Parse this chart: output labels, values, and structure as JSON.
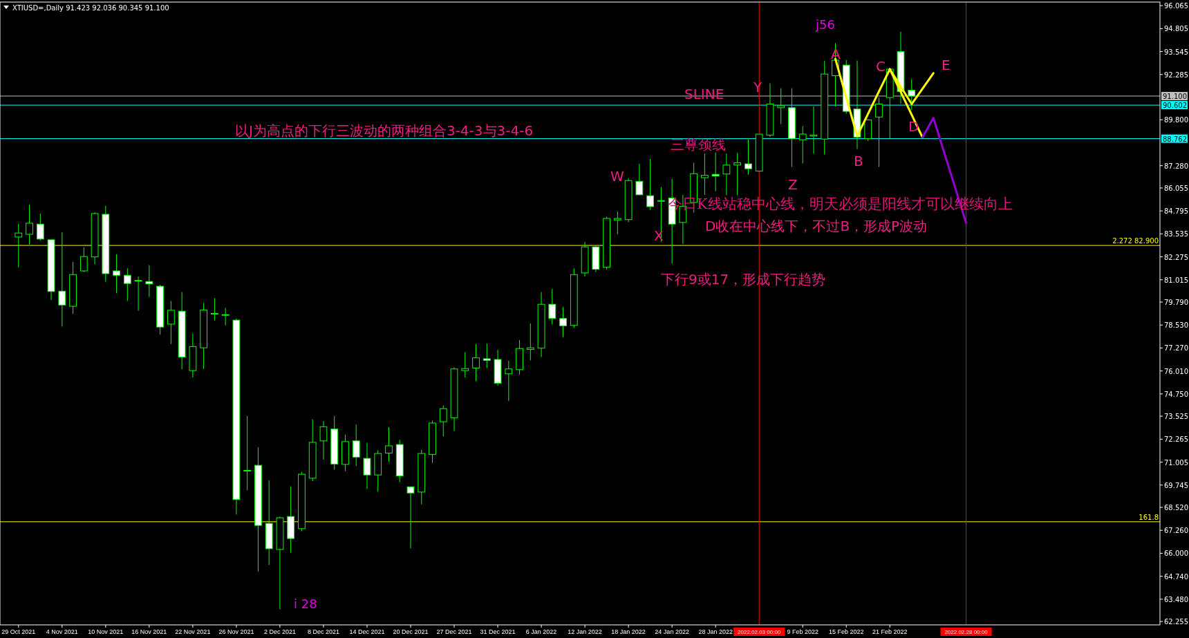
{
  "chart_data": {
    "type": "candlestick",
    "title": "XTIUSD=,Daily  91.423 92.036 90.345 91.100",
    "categories": [
      "29 Oct 2021",
      null,
      null,
      null,
      "4 Nov 2021",
      null,
      null,
      null,
      "10 Nov 2021",
      null,
      null,
      null,
      "16 Nov 2021",
      null,
      null,
      null,
      "22 Nov 2021",
      null,
      null,
      null,
      "26 Nov 2021",
      null,
      null,
      null,
      "2 Dec 2021",
      null,
      null,
      null,
      "8 Dec 2021",
      null,
      null,
      null,
      "14 Dec 2021",
      null,
      null,
      null,
      "20 Dec 2021",
      null,
      null,
      null,
      "27 Dec 2021",
      null,
      null,
      null,
      "31 Dec 2021",
      null,
      null,
      null,
      "6 Jan 2022",
      null,
      null,
      null,
      "12 Jan 2022",
      null,
      null,
      null,
      "18 Jan 2022",
      null,
      null,
      null,
      "24 Jan 2022",
      null,
      null,
      null,
      "28 Jan 2022",
      null,
      null,
      null,
      "2022.02.03 00:00",
      null,
      null,
      null,
      "9 Feb 2022",
      null,
      null,
      null,
      "15 Feb 2022",
      null,
      null,
      null,
      "21 Feb 2022",
      null,
      null,
      null,
      null,
      null,
      null,
      "2022.02.28 00:00",
      null,
      null,
      null,
      null,
      null,
      null,
      null,
      null,
      null,
      null,
      null,
      null,
      null,
      null,
      null,
      null,
      null
    ],
    "ohlc": [
      [
        83.36,
        84.09,
        81.7,
        83.58
      ],
      [
        83.51,
        85.14,
        82.96,
        84.12
      ],
      [
        84.07,
        84.65,
        83.16,
        83.25
      ],
      [
        83.21,
        83.23,
        79.9,
        80.37
      ],
      [
        80.39,
        83.63,
        78.45,
        79.63
      ],
      [
        79.56,
        81.99,
        79.14,
        81.3
      ],
      [
        81.5,
        82.8,
        81.44,
        82.29
      ],
      [
        82.27,
        84.72,
        81.86,
        84.65
      ],
      [
        84.61,
        85.08,
        80.9,
        81.35
      ],
      [
        81.5,
        82.42,
        80.28,
        81.26
      ],
      [
        81.26,
        81.64,
        79.85,
        80.81
      ],
      [
        80.98,
        81.19,
        79.32,
        80.96
      ],
      [
        80.92,
        81.82,
        80.07,
        80.79
      ],
      [
        80.66,
        80.74,
        78.0,
        78.42
      ],
      [
        78.58,
        79.85,
        77.49,
        79.34
      ],
      [
        79.29,
        80.34,
        76.1,
        76.77
      ],
      [
        76.03,
        78.07,
        75.65,
        77.35
      ],
      [
        77.28,
        79.74,
        76.12,
        79.36
      ],
      [
        79.16,
        80.01,
        78.78,
        79.17
      ],
      [
        79.09,
        79.47,
        78.51,
        79.1
      ],
      [
        78.8,
        78.89,
        68.13,
        68.95
      ],
      [
        70.54,
        73.53,
        69.47,
        70.55
      ],
      [
        70.83,
        71.81,
        65.0,
        67.53
      ],
      [
        67.64,
        70.0,
        65.36,
        66.25
      ],
      [
        66.21,
        68.02,
        62.93,
        67.95
      ],
      [
        68.02,
        69.67,
        66.03,
        66.81
      ],
      [
        67.35,
        70.47,
        67.21,
        70.34
      ],
      [
        70.12,
        73.35,
        69.96,
        72.09
      ],
      [
        72.17,
        73.26,
        71.14,
        72.95
      ],
      [
        72.82,
        73.53,
        70.59,
        70.9
      ],
      [
        70.88,
        72.51,
        70.52,
        72.13
      ],
      [
        72.17,
        73.06,
        70.79,
        71.28
      ],
      [
        71.21,
        72.06,
        69.53,
        70.3
      ],
      [
        70.3,
        71.66,
        69.38,
        71.48
      ],
      [
        71.5,
        72.93,
        71.01,
        71.9
      ],
      [
        71.97,
        72.22,
        69.91,
        70.25
      ],
      [
        69.65,
        69.66,
        66.27,
        69.31
      ],
      [
        69.36,
        71.68,
        68.69,
        71.48
      ],
      [
        71.43,
        73.29,
        70.96,
        73.15
      ],
      [
        73.22,
        74.11,
        72.42,
        73.94
      ],
      [
        73.44,
        76.21,
        72.71,
        76.12
      ],
      [
        76.03,
        77.04,
        75.65,
        76.14
      ],
      [
        76.17,
        77.49,
        75.45,
        76.73
      ],
      [
        76.68,
        77.51,
        76.17,
        76.59
      ],
      [
        76.64,
        77.17,
        75.21,
        75.34
      ],
      [
        75.85,
        76.57,
        74.36,
        76.12
      ],
      [
        76.08,
        77.71,
        75.81,
        77.24
      ],
      [
        77.19,
        78.62,
        76.59,
        77.28
      ],
      [
        77.26,
        80.34,
        76.77,
        79.67
      ],
      [
        79.67,
        80.52,
        78.56,
        78.89
      ],
      [
        78.89,
        79.52,
        77.87,
        78.49
      ],
      [
        78.51,
        81.64,
        78.38,
        81.3
      ],
      [
        81.39,
        83.09,
        81.19,
        82.82
      ],
      [
        82.82,
        82.89,
        81.44,
        81.59
      ],
      [
        81.7,
        84.47,
        81.57,
        84.38
      ],
      [
        84.3,
        84.76,
        83.51,
        84.38
      ],
      [
        84.32,
        86.6,
        84.18,
        86.46
      ],
      [
        86.42,
        87.38,
        85.66,
        85.68
      ],
      [
        85.63,
        87.65,
        84.85,
        85.03
      ],
      [
        85.35,
        86.1,
        83.11,
        85.36
      ],
      [
        85.5,
        86.55,
        81.91,
        84.07
      ],
      [
        84.16,
        85.68,
        82.98,
        85.05
      ],
      [
        85.26,
        87.44,
        84.7,
        86.84
      ],
      [
        86.62,
        87.94,
        85.68,
        86.75
      ],
      [
        86.8,
        88.0,
        85.88,
        86.71
      ],
      [
        86.82,
        87.94,
        85.66,
        87.31
      ],
      [
        87.31,
        87.98,
        85.66,
        87.44
      ],
      [
        87.38,
        88.72,
        86.78,
        87.11
      ],
      [
        86.98,
        89.01,
        86.98,
        89.01
      ],
      [
        88.96,
        91.8,
        88.85,
        90.66
      ],
      [
        90.46,
        91.53,
        89.57,
        90.57
      ],
      [
        90.46,
        91.53,
        87.22,
        88.76
      ],
      [
        88.7,
        89.45,
        87.4,
        89.01
      ],
      [
        88.9,
        90.53,
        87.94,
        88.96
      ],
      [
        88.74,
        93.03,
        87.89,
        92.31
      ],
      [
        92.22,
        94.01,
        90.53,
        93.07
      ],
      [
        92.8,
        93.07,
        90.13,
        90.26
      ],
      [
        90.39,
        93.05,
        88.2,
        88.85
      ],
      [
        88.76,
        89.83,
        88.63,
        89.79
      ],
      [
        89.95,
        91.02,
        87.22,
        90.66
      ],
      [
        91.02,
        92.63,
        88.78,
        92.58
      ],
      [
        93.54,
        94.63,
        90.68,
        91.35
      ],
      [
        91.423,
        92.036,
        90.345,
        91.1
      ],
      null,
      null,
      null,
      null,
      null,
      null,
      null,
      null,
      null,
      null,
      null,
      null,
      null,
      null,
      null,
      null,
      null,
      null,
      null,
      null,
      null,
      null
    ],
    "series": [
      {
        "type": "line",
        "color": "#ffff00",
        "values": [
          null,
          null,
          null,
          null,
          null,
          null,
          null,
          null,
          null,
          null,
          null,
          null,
          null,
          null,
          null,
          null,
          null,
          null,
          null,
          null,
          null,
          null,
          null,
          null,
          null,
          null,
          null,
          null,
          null,
          null,
          null,
          null,
          null,
          null,
          null,
          null,
          null,
          null,
          null,
          null,
          null,
          null,
          null,
          null,
          null,
          null,
          null,
          null,
          null,
          null,
          null,
          null,
          null,
          null,
          null,
          null,
          null,
          null,
          null,
          null,
          null,
          null,
          null,
          null,
          null,
          null,
          null,
          null,
          null,
          null,
          null,
          null,
          null,
          null,
          null,
          93.14,
          null,
          88.9,
          null,
          null,
          92.58,
          null,
          null,
          88.83,
          null,
          null,
          null,
          null,
          null,
          null,
          null,
          null,
          null,
          null,
          null,
          null,
          null,
          null,
          null,
          null,
          null,
          null,
          null,
          null,
          null
        ]
      },
      {
        "type": "line",
        "color": "#ffff00",
        "values": [
          null,
          null,
          null,
          null,
          null,
          null,
          null,
          null,
          null,
          null,
          null,
          null,
          null,
          null,
          null,
          null,
          null,
          null,
          null,
          null,
          null,
          null,
          null,
          null,
          null,
          null,
          null,
          null,
          null,
          null,
          null,
          null,
          null,
          null,
          null,
          null,
          null,
          null,
          null,
          null,
          null,
          null,
          null,
          null,
          null,
          null,
          null,
          null,
          null,
          null,
          null,
          null,
          null,
          null,
          null,
          null,
          null,
          null,
          null,
          null,
          null,
          null,
          null,
          null,
          null,
          null,
          null,
          null,
          null,
          null,
          null,
          null,
          null,
          null,
          null,
          null,
          null,
          null,
          null,
          null,
          92.58,
          null,
          90.66,
          null,
          92.36,
          null,
          null,
          null,
          null,
          null,
          null,
          null,
          null,
          null,
          null,
          null,
          null,
          null,
          null,
          null,
          null,
          null,
          null,
          null,
          null
        ]
      },
      {
        "type": "line",
        "color": "#9400d3",
        "values": [
          null,
          null,
          null,
          null,
          null,
          null,
          null,
          null,
          null,
          null,
          null,
          null,
          null,
          null,
          null,
          null,
          null,
          null,
          null,
          null,
          null,
          null,
          null,
          null,
          null,
          null,
          null,
          null,
          null,
          null,
          null,
          null,
          null,
          null,
          null,
          null,
          null,
          null,
          null,
          null,
          null,
          null,
          null,
          null,
          null,
          null,
          null,
          null,
          null,
          null,
          null,
          null,
          null,
          null,
          null,
          null,
          null,
          null,
          null,
          null,
          null,
          null,
          null,
          null,
          null,
          null,
          null,
          null,
          null,
          null,
          null,
          null,
          null,
          null,
          null,
          null,
          null,
          null,
          null,
          null,
          null,
          null,
          null,
          88.83,
          89.9,
          null,
          null,
          84.14,
          null,
          null,
          null,
          null,
          null,
          null,
          null,
          null,
          null,
          null,
          null,
          null,
          null,
          null,
          null,
          null,
          null
        ]
      }
    ],
    "ylim": [
      62.07,
      96.26
    ],
    "yticks": [
      96.065,
      94.805,
      93.545,
      92.285,
      {
        "value": 89.8,
        "label": "89.800"
      },
      {
        "value": 87.28,
        "label": "87.280"
      },
      86.055,
      84.795,
      83.535,
      82.275,
      81.015,
      {
        "value": 79.79,
        "label": "79.790"
      },
      {
        "value": 78.53,
        "label": "78.530"
      },
      {
        "value": 77.27,
        "label": "77.270"
      },
      {
        "value": 76.01,
        "label": "76.010"
      },
      {
        "value": 74.75,
        "label": "74.750"
      },
      73.525,
      72.265,
      71.005,
      69.745,
      {
        "value": 68.52,
        "label": "68.520"
      },
      {
        "value": 67.26,
        "label": "67.260"
      },
      {
        "value": 66,
        "label": "66.000"
      },
      {
        "value": 64.74,
        "label": "64.740"
      },
      {
        "value": 63.48,
        "label": "63.480"
      },
      62.255
    ],
    "ref_lines": [
      {
        "axis": "y",
        "value": 91.1,
        "label": "91.100",
        "color": "#c0c0c0"
      },
      {
        "axis": "y",
        "value": 90.602,
        "label": "90.602",
        "color": "#00ffff"
      },
      {
        "axis": "y",
        "value": 88.762,
        "label": "88.762",
        "color": "#00ffff"
      },
      {
        "axis": "y",
        "value": 82.9,
        "label": "2.272 82.900",
        "color": "#ffff00"
      },
      {
        "axis": "y",
        "value": 67.73,
        "color": "#ffff00"
      },
      {
        "axis": "x",
        "value": "2022.02.03 00:00",
        "color": "#ff0000"
      },
      {
        "axis": "x",
        "value": "2022.02.28 00:00",
        "color": "#ff0000"
      }
    ],
    "annotations": [
      "以J为高点的下行三波动的两种组合3-4-3与3-4-6",
      "SLINE",
      "三尊颈线",
      "W",
      "X",
      "Y",
      "Z",
      "A",
      "B",
      "C",
      "D",
      "E",
      "j56",
      "i 28",
      "今日K线站稳中心线，明天必须是阳线才可以继续向上",
      "D收在中心线下，不过B，形成P波动",
      "下行9或17，形成下行趋势",
      {
        "text": "161.8",
        "y": 67.73
      }
    ]
  }
}
